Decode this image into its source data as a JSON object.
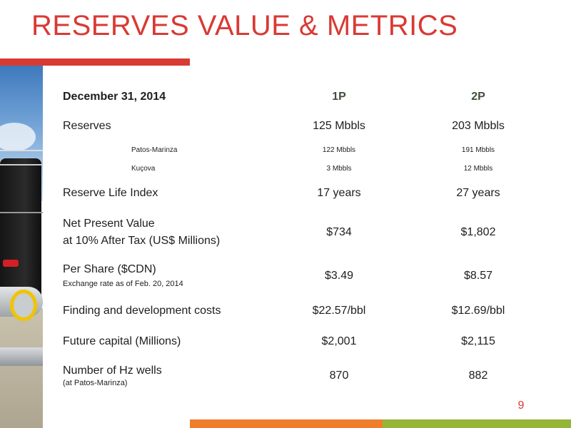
{
  "slide": {
    "title": "RESERVES VALUE & METRICS",
    "page_number": "9"
  },
  "colors": {
    "accent_red": "#d93a34",
    "footer_orange": "#ef7d2b",
    "footer_green": "#95b538",
    "header_column": "#414f3a"
  },
  "table": {
    "header": {
      "label": "December 31, 2014",
      "col1": "1P",
      "col2": "2P"
    },
    "reserves": {
      "label": "Reserves",
      "col1": "125 Mbbls",
      "col2": "203 Mbbls"
    },
    "patos": {
      "label": "Patos-Marinza",
      "col1": "122 Mbbls",
      "col2": "191 Mbbls"
    },
    "kucova": {
      "label": "Kuçova",
      "col1": "3 Mbbls",
      "col2": "12 Mbbls"
    },
    "rli": {
      "label": "Reserve Life Index",
      "col1": "17 years",
      "col2": "27 years"
    },
    "npv": {
      "label": "Net Present Value",
      "label2": "at 10% After Tax (US$ Millions)",
      "col1": "$734",
      "col2": "$1,802"
    },
    "per_share": {
      "label": "Per Share ($CDN)",
      "note": "Exchange rate as of Feb. 20, 2014",
      "col1": "$3.49",
      "col2": "$8.57"
    },
    "fd_costs": {
      "label": "Finding and development costs",
      "col1": "$22.57/bbl",
      "col2": "$12.69/bbl"
    },
    "future_capital": {
      "label": "Future capital (Millions)",
      "col1": "$2,001",
      "col2": "$2,115"
    },
    "hz_wells": {
      "label": "Number of Hz wells",
      "note": "(at Patos-Marinza)",
      "col1": "870",
      "col2": "882"
    }
  }
}
